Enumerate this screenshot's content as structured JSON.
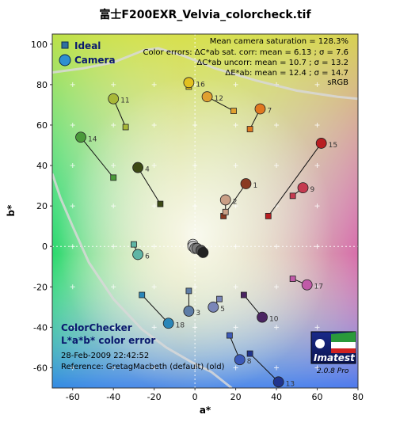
{
  "chart_data": {
    "type": "scatter",
    "title": "富士F200EXR_Velvia_colorcheck.tif",
    "xlabel": "a*",
    "ylabel": "b*",
    "xlim": [
      -70,
      80
    ],
    "ylim": [
      -70,
      105
    ],
    "xticks": [
      "-60",
      "-40",
      "-20",
      "0",
      "20",
      "40",
      "60",
      "80"
    ],
    "yticks": [
      "100",
      "80",
      "60",
      "40",
      "20",
      "0",
      "-20",
      "-40",
      "-60"
    ],
    "legend": {
      "placement": "top-left",
      "items": [
        "Ideal",
        "Camera"
      ]
    },
    "stats": [
      "Mean camera saturation = 128.3%",
      "Color errors:  ΔC*ab sat. corr:  mean = 6.13 ;  σ = 7.6",
      "ΔC*ab uncorr:  mean = 10.7 ;  σ = 13.2",
      "ΔE*ab:  mean = 12.4 ;  σ = 14.7",
      "sRGB"
    ],
    "panel": {
      "title1": "ColorChecker",
      "title2": "L*a*b* color error",
      "date": "28-Feb-2009 22:42:52",
      "reference": "Reference: GretagMacbeth (default) (old)"
    },
    "logo": {
      "name": "Imatest",
      "version": "2.0.8  Pro"
    },
    "patches": [
      {
        "id": "1",
        "ideal": [
          14,
          15
        ],
        "camera": [
          25,
          31
        ],
        "color": "#8a3a22"
      },
      {
        "id": "2",
        "ideal": [
          15,
          17
        ],
        "camera": [
          15,
          23
        ],
        "color": "#c99f86"
      },
      {
        "id": "3",
        "ideal": [
          -3,
          -22
        ],
        "camera": [
          -3,
          -32
        ],
        "color": "#5e7da6"
      },
      {
        "id": "4",
        "ideal": [
          -17,
          21
        ],
        "camera": [
          -28,
          39
        ],
        "color": "#3c4a14"
      },
      {
        "id": "5",
        "ideal": [
          12,
          -26
        ],
        "camera": [
          9,
          -30
        ],
        "color": "#7a86b8"
      },
      {
        "id": "6",
        "ideal": [
          -30,
          1
        ],
        "camera": [
          -28,
          -4
        ],
        "color": "#5fb5a5"
      },
      {
        "id": "7",
        "ideal": [
          27,
          58
        ],
        "camera": [
          32,
          68
        ],
        "color": "#e07820"
      },
      {
        "id": "8",
        "ideal": [
          17,
          -44
        ],
        "camera": [
          22,
          -56
        ],
        "color": "#3c5ab8"
      },
      {
        "id": "9",
        "ideal": [
          48,
          25
        ],
        "camera": [
          53,
          29
        ],
        "color": "#c53a50"
      },
      {
        "id": "10",
        "ideal": [
          24,
          -24
        ],
        "camera": [
          33,
          -35
        ],
        "color": "#4a2462"
      },
      {
        "id": "11",
        "ideal": [
          -34,
          59
        ],
        "camera": [
          -40,
          73
        ],
        "color": "#a8b838"
      },
      {
        "id": "12",
        "ideal": [
          19,
          67
        ],
        "camera": [
          6,
          74
        ],
        "color": "#e0a030"
      },
      {
        "id": "13",
        "ideal": [
          27,
          -53
        ],
        "camera": [
          41,
          -67
        ],
        "color": "#20348e"
      },
      {
        "id": "14",
        "ideal": [
          -40,
          34
        ],
        "camera": [
          -56,
          54
        ],
        "color": "#4a9a3a"
      },
      {
        "id": "15",
        "ideal": [
          36,
          15
        ],
        "camera": [
          62,
          51
        ],
        "color": "#b81e22"
      },
      {
        "id": "16",
        "ideal": [
          -3,
          79
        ],
        "camera": [
          -3,
          81
        ],
        "color": "#e2c020"
      },
      {
        "id": "17",
        "ideal": [
          48,
          -16
        ],
        "camera": [
          55,
          -19
        ],
        "color": "#c05aa8"
      },
      {
        "id": "18",
        "ideal": [
          -26,
          -24
        ],
        "camera": [
          -13,
          -38
        ],
        "color": "#2a86b8"
      },
      {
        "id": "19",
        "ideal": [
          0,
          0
        ],
        "camera": [
          -1,
          1
        ],
        "color": "#f2f2f2"
      },
      {
        "id": "20",
        "ideal": [
          0,
          0
        ],
        "camera": [
          -1,
          0
        ],
        "color": "#c8c8c8"
      },
      {
        "id": "21",
        "ideal": [
          0,
          0
        ],
        "camera": [
          0,
          -1
        ],
        "color": "#a0a0a0"
      },
      {
        "id": "22",
        "ideal": [
          0,
          0
        ],
        "camera": [
          1,
          -1
        ],
        "color": "#7a7a7a"
      },
      {
        "id": "23",
        "ideal": [
          0,
          0
        ],
        "camera": [
          3,
          -2
        ],
        "color": "#555555"
      },
      {
        "id": "24",
        "ideal": [
          0,
          0
        ],
        "camera": [
          4,
          -3
        ],
        "color": "#222222"
      }
    ],
    "gamut_left": [
      [
        -70,
        36
      ],
      [
        -66,
        24
      ],
      [
        -60,
        10
      ],
      [
        -52,
        -8
      ],
      [
        -40,
        -26
      ],
      [
        -26,
        -41
      ],
      [
        -14,
        -50
      ],
      [
        -2,
        -57
      ],
      [
        8,
        -62
      ],
      [
        18,
        -70
      ]
    ],
    "gamut_top": [
      [
        -70,
        86
      ],
      [
        -55,
        88
      ],
      [
        -40,
        91
      ],
      [
        -25,
        97
      ],
      [
        -18,
        98
      ],
      [
        -5,
        94
      ],
      [
        10,
        88
      ],
      [
        30,
        82
      ],
      [
        50,
        77
      ],
      [
        70,
        74
      ],
      [
        80,
        73
      ]
    ],
    "grid_x": [
      -60,
      -40,
      -20,
      0,
      20,
      40,
      60
    ],
    "grid_y": [
      80,
      60,
      40,
      20,
      0,
      -20,
      -40,
      -60
    ],
    "colors": {
      "legend_ideal": "#2f6fa0",
      "legend_camera": "#2f8fd0",
      "axis_text": "#000000",
      "panel_text": "#0b1a6e"
    }
  }
}
